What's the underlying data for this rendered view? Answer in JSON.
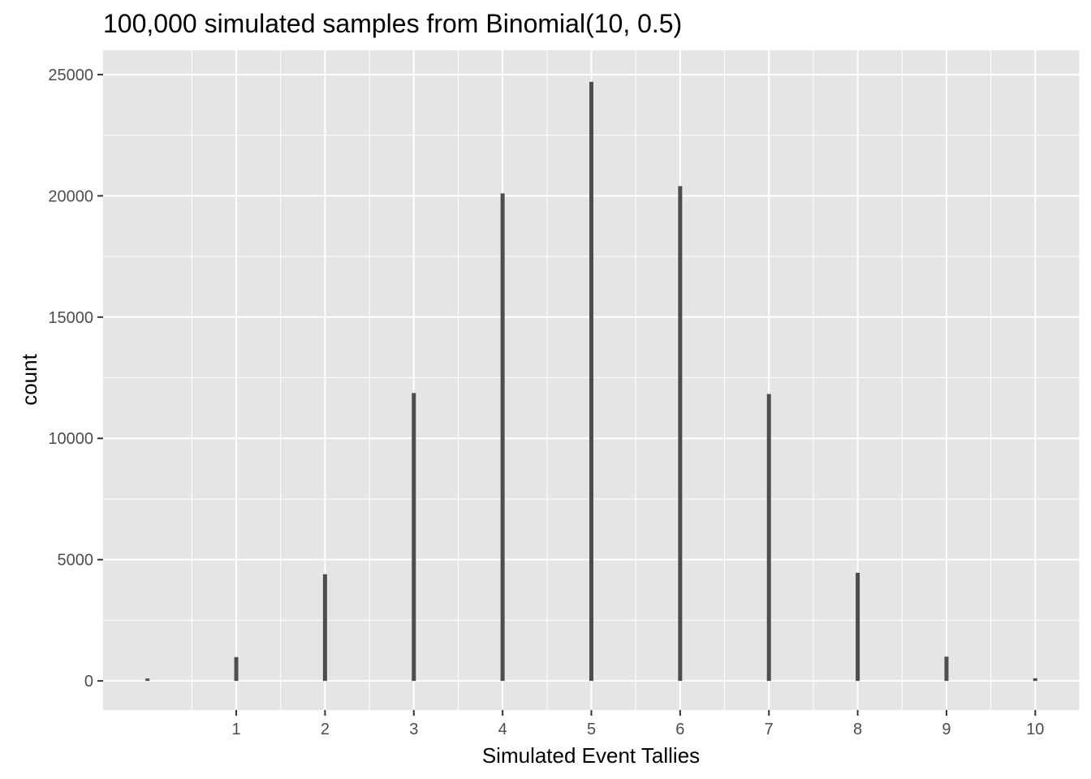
{
  "chart_data": {
    "type": "bar",
    "title": "100,000 simulated samples from Binomial(10, 0.5)",
    "xlabel": "Simulated Event Tallies",
    "ylabel": "count",
    "x": [
      0,
      1,
      2,
      3,
      4,
      5,
      6,
      7,
      8,
      9,
      10
    ],
    "values": [
      100,
      980,
      4400,
      11870,
      20100,
      24700,
      20400,
      11830,
      4460,
      1000,
      110
    ],
    "x_ticks": [
      1,
      2,
      3,
      4,
      5,
      6,
      7,
      8,
      9,
      10
    ],
    "y_ticks": [
      0,
      5000,
      10000,
      15000,
      20000,
      25000
    ],
    "xlim": [
      -0.5,
      10.5
    ],
    "ylim": [
      -1200,
      26000
    ],
    "grid": true,
    "colors": {
      "panel": "#e5e5e5",
      "grid": "#ffffff",
      "bar": "#4d4d4d",
      "tick": "#333333"
    }
  }
}
